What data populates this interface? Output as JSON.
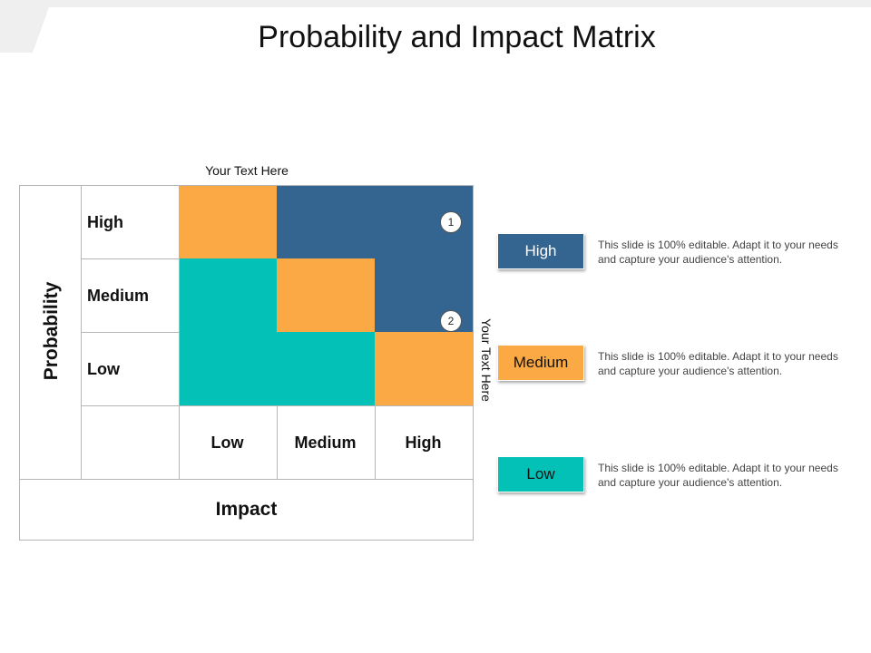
{
  "title": "Probability and Impact Matrix",
  "top_caption": "Your Text Here",
  "right_caption": "Your Text Here",
  "axes": {
    "probability": "Probability",
    "impact": "Impact"
  },
  "rows": [
    "High",
    "Medium",
    "Low"
  ],
  "columns": [
    "Low",
    "Medium",
    "High"
  ],
  "colors": {
    "orange": "#fba944",
    "blue": "#346591",
    "teal": "#04c1b8",
    "header_band": "#efefef"
  },
  "grid": [
    [
      "orange",
      "blue",
      "blue"
    ],
    [
      "teal",
      "orange",
      "blue"
    ],
    [
      "teal",
      "teal",
      "orange"
    ]
  ],
  "markers": [
    "1",
    "2"
  ],
  "legend": [
    {
      "label": "High",
      "color": "#346591",
      "text_color": "#ffffff",
      "description": "This slide is 100% editable. Adapt it to your needs and capture your audience's attention."
    },
    {
      "label": "Medium",
      "color": "#fba944",
      "text_color": "#111111",
      "description": "This slide is 100% editable. Adapt it to your needs and capture your audience's attention."
    },
    {
      "label": "Low",
      "color": "#04c1b8",
      "text_color": "#111111",
      "description": "This slide is 100% editable. Adapt it to your needs and capture your audience's attention."
    }
  ]
}
